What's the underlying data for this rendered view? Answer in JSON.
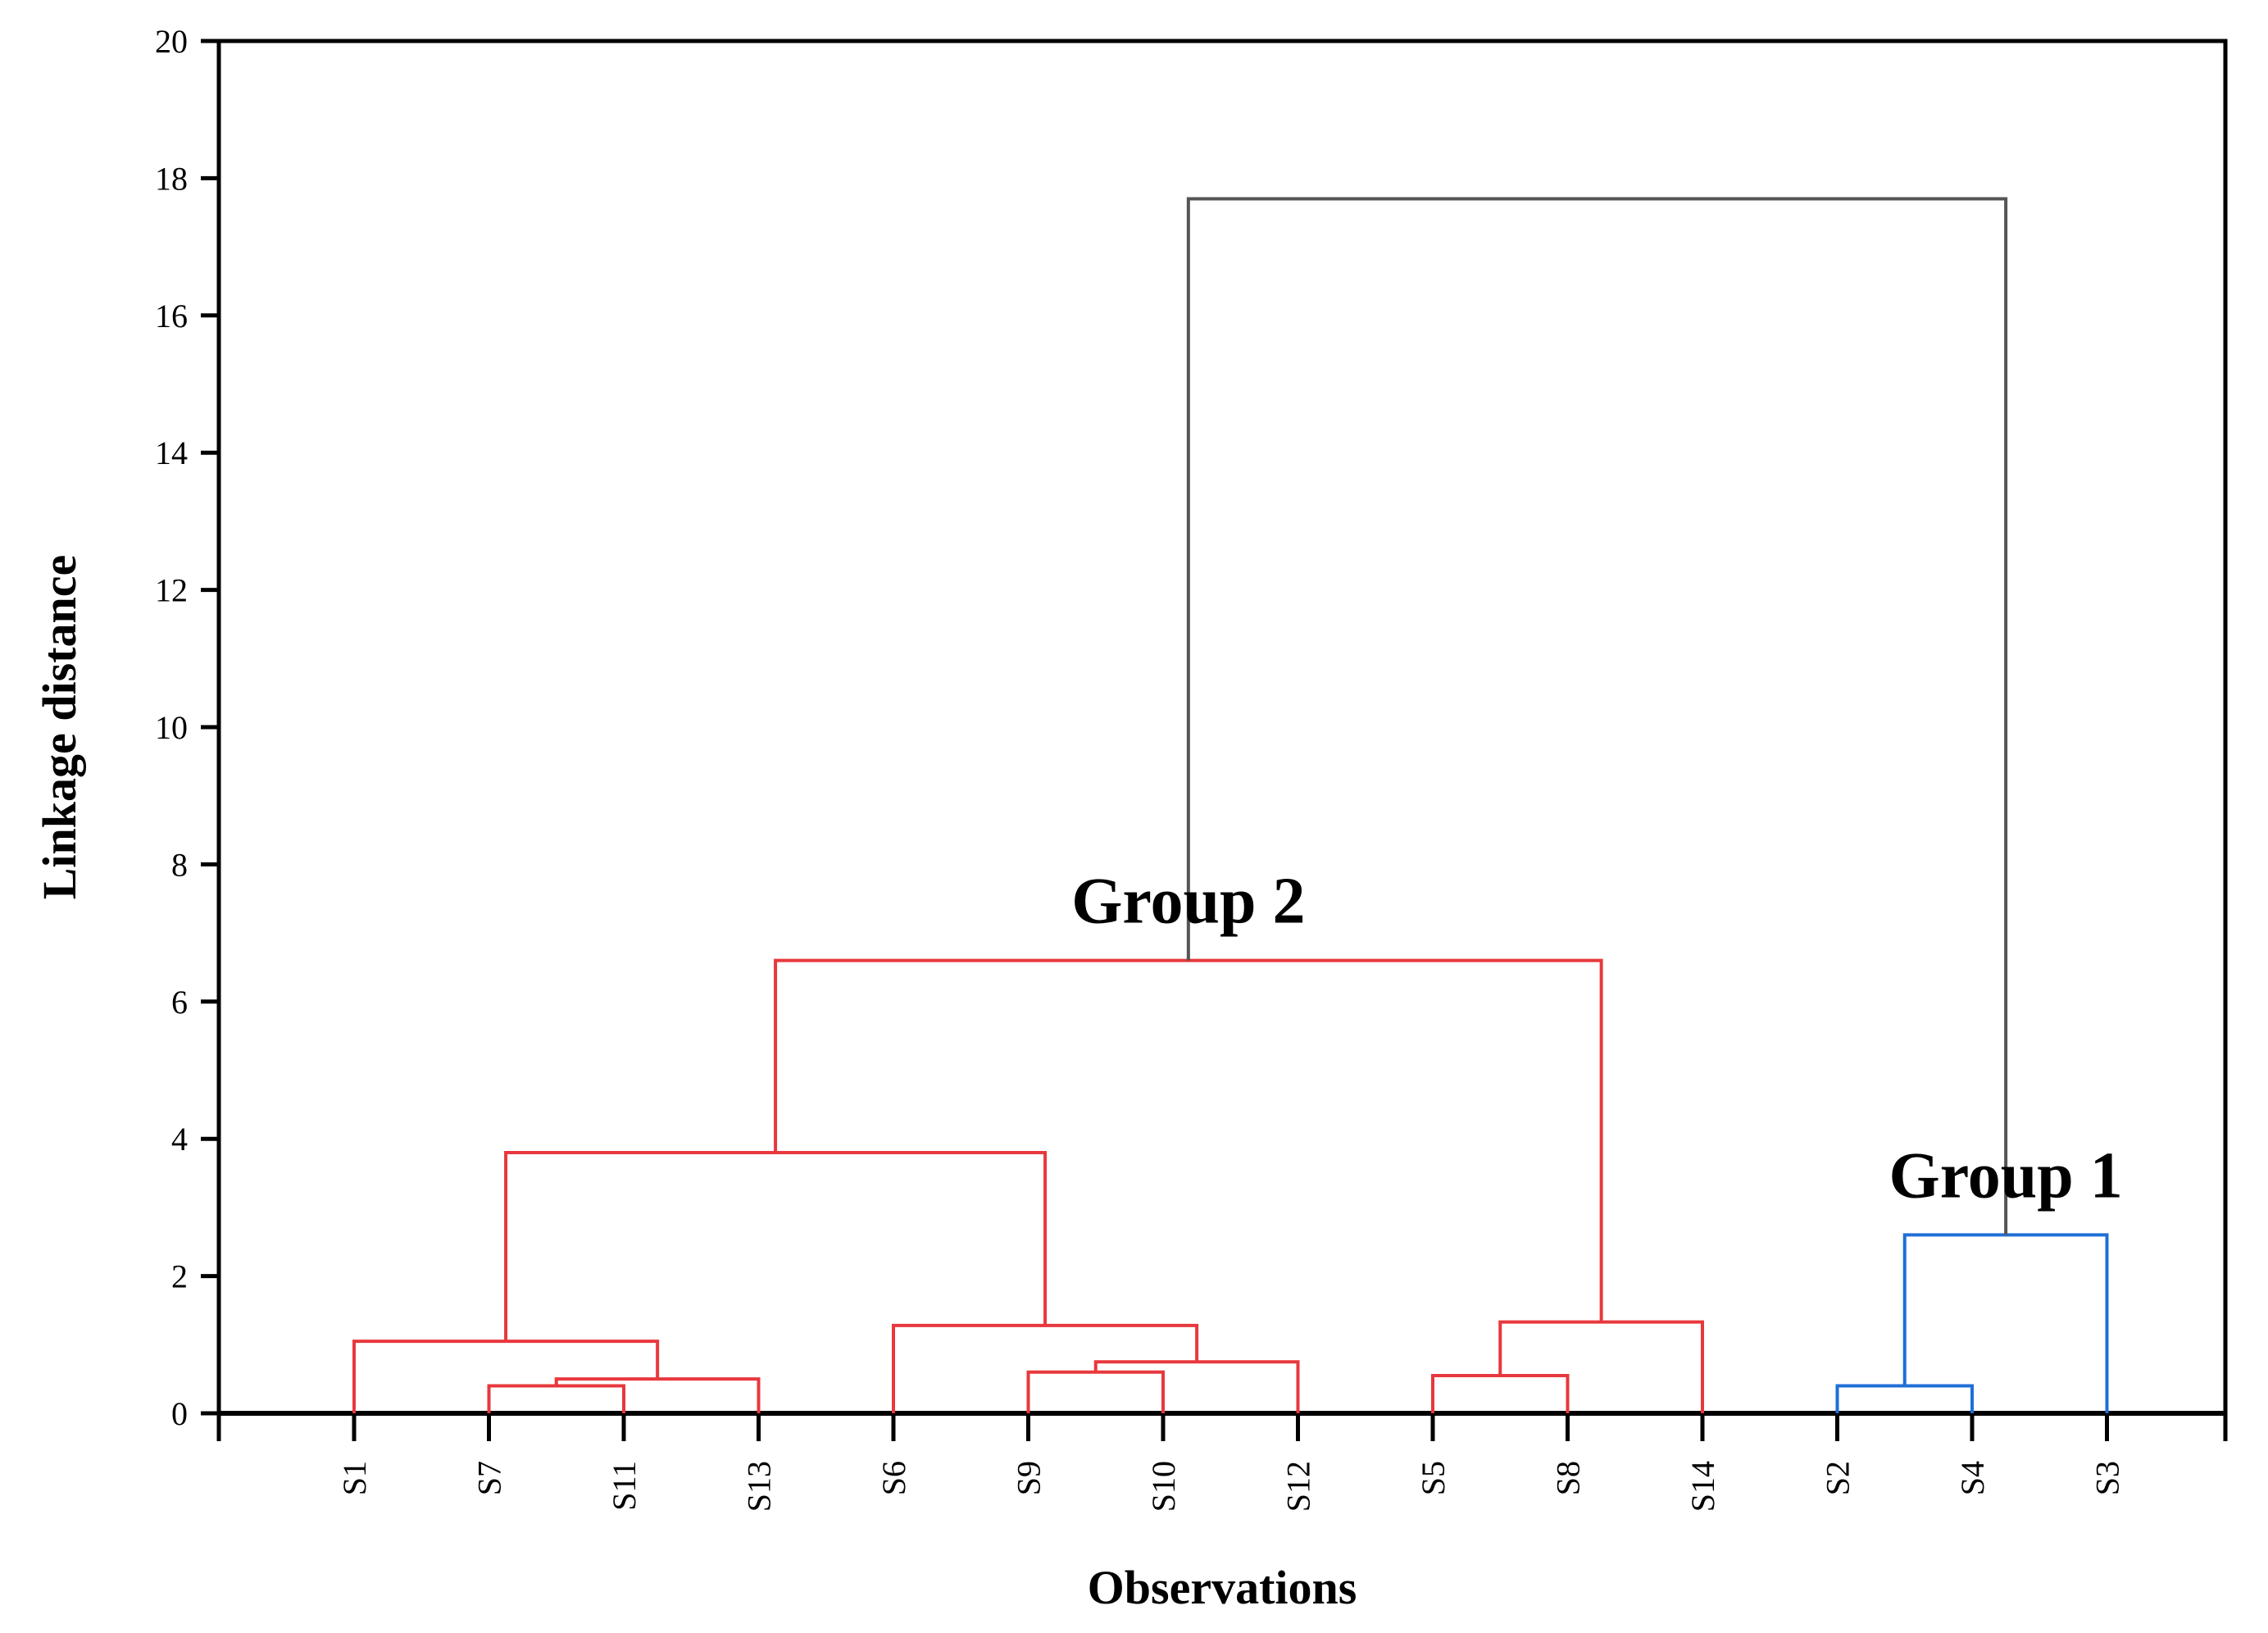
{
  "chart_data": {
    "type": "dendrogram",
    "xlabel": "Observations",
    "ylabel": "Linkage distance",
    "ylim": [
      0,
      20
    ],
    "yticks": [
      0,
      2,
      4,
      6,
      8,
      10,
      12,
      14,
      16,
      18,
      20
    ],
    "leaves": [
      "S1",
      "S7",
      "S11",
      "S13",
      "S6",
      "S9",
      "S10",
      "S12",
      "S5",
      "S8",
      "S14",
      "S2",
      "S4",
      "S3"
    ],
    "merges": [
      {
        "id": "m1",
        "left": "S7",
        "right": "S11",
        "height": 0.4,
        "color": "#e8383d"
      },
      {
        "id": "m2",
        "left": "m1",
        "right": "S13",
        "height": 0.5,
        "color": "#e8383d"
      },
      {
        "id": "m3",
        "left": "S1",
        "right": "m2",
        "height": 1.05,
        "color": "#e8383d"
      },
      {
        "id": "m4",
        "left": "S9",
        "right": "S10",
        "height": 0.6,
        "color": "#e8383d"
      },
      {
        "id": "m5",
        "left": "m4",
        "right": "S12",
        "height": 0.75,
        "color": "#e8383d"
      },
      {
        "id": "m6",
        "left": "S6",
        "right": "m5",
        "height": 1.28,
        "color": "#e8383d"
      },
      {
        "id": "m7",
        "left": "m3",
        "right": "m6",
        "height": 3.8,
        "color": "#e8383d"
      },
      {
        "id": "m8",
        "left": "S5",
        "right": "S8",
        "height": 0.55,
        "color": "#e8383d"
      },
      {
        "id": "m9",
        "left": "m8",
        "right": "S14",
        "height": 1.33,
        "color": "#e8383d"
      },
      {
        "id": "m10",
        "left": "m7",
        "right": "m9",
        "height": 6.6,
        "color": "#e8383d"
      },
      {
        "id": "m11",
        "left": "S2",
        "right": "S4",
        "height": 0.4,
        "color": "#1f6fd6"
      },
      {
        "id": "m12",
        "left": "m11",
        "right": "S3",
        "height": 2.6,
        "color": "#1f6fd6"
      },
      {
        "id": "m13",
        "left": "m10",
        "right": "m12",
        "height": 17.7,
        "color": "#555555"
      }
    ],
    "annotations": [
      {
        "text": "Group 2",
        "cluster": "m10"
      },
      {
        "text": "Group 1",
        "cluster": "m12"
      }
    ]
  }
}
